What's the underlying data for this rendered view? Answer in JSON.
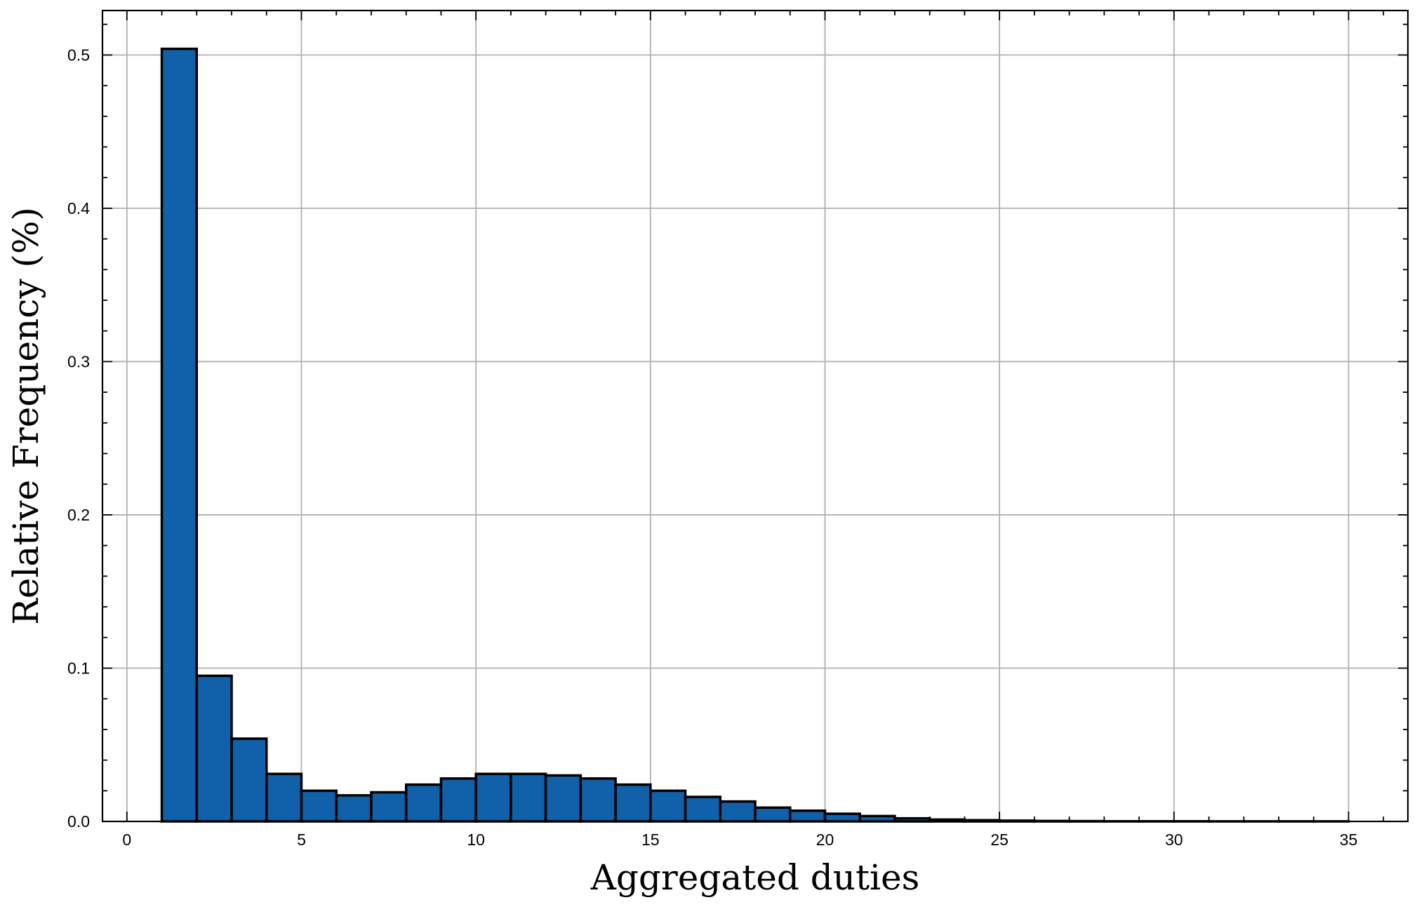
{
  "chart_data": {
    "type": "bar",
    "title": "",
    "xlabel": "Aggregated duties",
    "ylabel": "Relative Frequency (%)",
    "xlim": [
      -0.7,
      36.7
    ],
    "ylim": [
      0,
      0.529
    ],
    "x_ticks": [
      0,
      5,
      10,
      15,
      20,
      25,
      30,
      35
    ],
    "x_tick_labels": [
      "0",
      "5",
      "10",
      "15",
      "20",
      "25",
      "30",
      "35"
    ],
    "x_minor_step": 1,
    "y_ticks": [
      0.0,
      0.1,
      0.2,
      0.3,
      0.4,
      0.5
    ],
    "y_tick_labels": [
      "0.0",
      "0.1",
      "0.2",
      "0.3",
      "0.4",
      "0.5"
    ],
    "y_minor_step": 0.02,
    "grid": true,
    "bar_color": "#1060aa",
    "bar_edge_color": "#000000",
    "grid_color": "#b0b0b0",
    "bins": [
      {
        "x0": 1,
        "x1": 2,
        "value": 0.504
      },
      {
        "x0": 2,
        "x1": 3,
        "value": 0.095
      },
      {
        "x0": 3,
        "x1": 4,
        "value": 0.054
      },
      {
        "x0": 4,
        "x1": 5,
        "value": 0.031
      },
      {
        "x0": 5,
        "x1": 6,
        "value": 0.02
      },
      {
        "x0": 6,
        "x1": 7,
        "value": 0.017
      },
      {
        "x0": 7,
        "x1": 8,
        "value": 0.019
      },
      {
        "x0": 8,
        "x1": 9,
        "value": 0.024
      },
      {
        "x0": 9,
        "x1": 10,
        "value": 0.028
      },
      {
        "x0": 10,
        "x1": 11,
        "value": 0.031
      },
      {
        "x0": 11,
        "x1": 12,
        "value": 0.031
      },
      {
        "x0": 12,
        "x1": 13,
        "value": 0.03
      },
      {
        "x0": 13,
        "x1": 14,
        "value": 0.028
      },
      {
        "x0": 14,
        "x1": 15,
        "value": 0.024
      },
      {
        "x0": 15,
        "x1": 16,
        "value": 0.02
      },
      {
        "x0": 16,
        "x1": 17,
        "value": 0.016
      },
      {
        "x0": 17,
        "x1": 18,
        "value": 0.013
      },
      {
        "x0": 18,
        "x1": 19,
        "value": 0.009
      },
      {
        "x0": 19,
        "x1": 20,
        "value": 0.007
      },
      {
        "x0": 20,
        "x1": 21,
        "value": 0.005
      },
      {
        "x0": 21,
        "x1": 22,
        "value": 0.0035
      },
      {
        "x0": 22,
        "x1": 23,
        "value": 0.002
      },
      {
        "x0": 23,
        "x1": 24,
        "value": 0.0012
      },
      {
        "x0": 24,
        "x1": 25,
        "value": 0.0008
      },
      {
        "x0": 25,
        "x1": 26,
        "value": 0.0005
      },
      {
        "x0": 26,
        "x1": 27,
        "value": 0.0003
      },
      {
        "x0": 27,
        "x1": 28,
        "value": 0.0002
      },
      {
        "x0": 28,
        "x1": 29,
        "value": 0.0001
      },
      {
        "x0": 29,
        "x1": 30,
        "value": 0.0001
      },
      {
        "x0": 30,
        "x1": 31,
        "value": 0.0001
      },
      {
        "x0": 31,
        "x1": 32,
        "value": 5e-05
      },
      {
        "x0": 32,
        "x1": 33,
        "value": 5e-05
      },
      {
        "x0": 33,
        "x1": 34,
        "value": 5e-05
      },
      {
        "x0": 34,
        "x1": 35,
        "value": 5e-05
      }
    ]
  }
}
